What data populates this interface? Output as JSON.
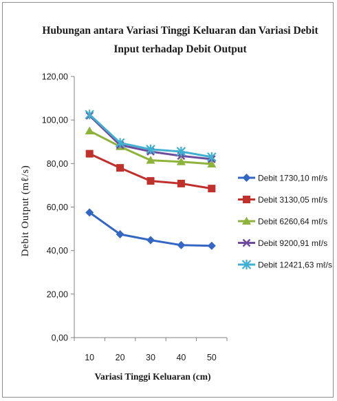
{
  "chart_data": {
    "type": "line",
    "title_lines": [
      "Hubungan antara Variasi Tinggi Keluaran dan Variasi Debit",
      "Input terhadap Debit Output"
    ],
    "xlabel": "Variasi Tinggi Keluaran (cm)",
    "ylabel": "Debit Output (mℓ/s)",
    "x": [
      10,
      20,
      30,
      40,
      50
    ],
    "ylim": [
      0,
      120
    ],
    "y_ticks": [
      "0,00",
      "20,00",
      "40,00",
      "60,00",
      "80,00",
      "100,00",
      "120,00"
    ],
    "grid": false,
    "legend_position": "right",
    "series": [
      {
        "name": "Debit 1730,10 mℓ/s",
        "color": "#3467c4",
        "marker": "diamond",
        "values": [
          57.5,
          47.5,
          44.8,
          42.5,
          42.2
        ]
      },
      {
        "name": "Debit 3130,05 mℓ/s",
        "color": "#c0312c",
        "marker": "square",
        "values": [
          84.5,
          78.0,
          72.0,
          70.8,
          68.5
        ]
      },
      {
        "name": "Debit 6260,64 mℓ/s",
        "color": "#8db33a",
        "marker": "triangle",
        "values": [
          95.0,
          87.8,
          81.5,
          80.8,
          79.8
        ]
      },
      {
        "name": "Debit 9200,91 mℓ/s",
        "color": "#6e4c9c",
        "marker": "x",
        "values": [
          102.0,
          88.5,
          85.5,
          83.5,
          82.0
        ]
      },
      {
        "name": "Debit 12421,63 mℓ/s",
        "color": "#3fb0cf",
        "marker": "star",
        "values": [
          102.5,
          89.5,
          86.5,
          85.5,
          83.0
        ]
      }
    ]
  }
}
